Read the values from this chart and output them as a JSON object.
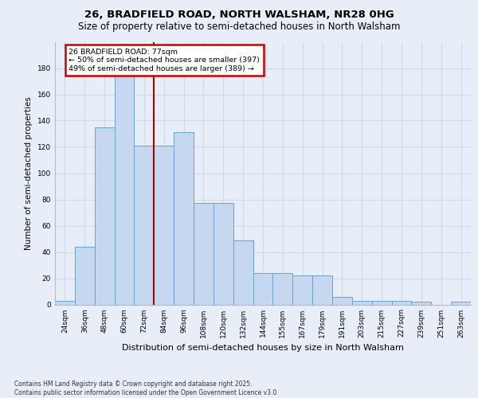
{
  "title1": "26, BRADFIELD ROAD, NORTH WALSHAM, NR28 0HG",
  "title2": "Size of property relative to semi-detached houses in North Walsham",
  "xlabel": "Distribution of semi-detached houses by size in North Walsham",
  "ylabel": "Number of semi-detached properties",
  "footnote": "Contains HM Land Registry data © Crown copyright and database right 2025.\nContains public sector information licensed under the Open Government Licence v3.0.",
  "categories": [
    "24sqm",
    "36sqm",
    "48sqm",
    "60sqm",
    "72sqm",
    "84sqm",
    "96sqm",
    "108sqm",
    "120sqm",
    "132sqm",
    "144sqm",
    "155sqm",
    "167sqm",
    "179sqm",
    "191sqm",
    "203sqm",
    "215sqm",
    "227sqm",
    "239sqm",
    "251sqm",
    "263sqm"
  ],
  "values": [
    3,
    44,
    135,
    178,
    121,
    121,
    131,
    77,
    77,
    49,
    24,
    24,
    22,
    22,
    6,
    3,
    3,
    3,
    2,
    0,
    2
  ],
  "bar_color": "#c5d8f0",
  "bar_edge_color": "#6ca0cc",
  "bg_color": "#e8eef8",
  "annotation_text": "26 BRADFIELD ROAD: 77sqm\n← 50% of semi-detached houses are smaller (397)\n49% of semi-detached houses are larger (389) →",
  "annotation_box_edge": "#cc0000",
  "vline_color": "#aa0000",
  "vline_x": 4.5,
  "ylim": [
    0,
    200
  ],
  "yticks": [
    0,
    20,
    40,
    60,
    80,
    100,
    120,
    140,
    160,
    180
  ],
  "grid_color": "#d0daea",
  "footnote_color": "#333333",
  "title1_fontsize": 9.5,
  "title2_fontsize": 8.5,
  "ylabel_fontsize": 7.5,
  "xlabel_fontsize": 8.0,
  "tick_fontsize": 6.5,
  "annot_fontsize": 6.8,
  "footnote_fontsize": 5.5
}
